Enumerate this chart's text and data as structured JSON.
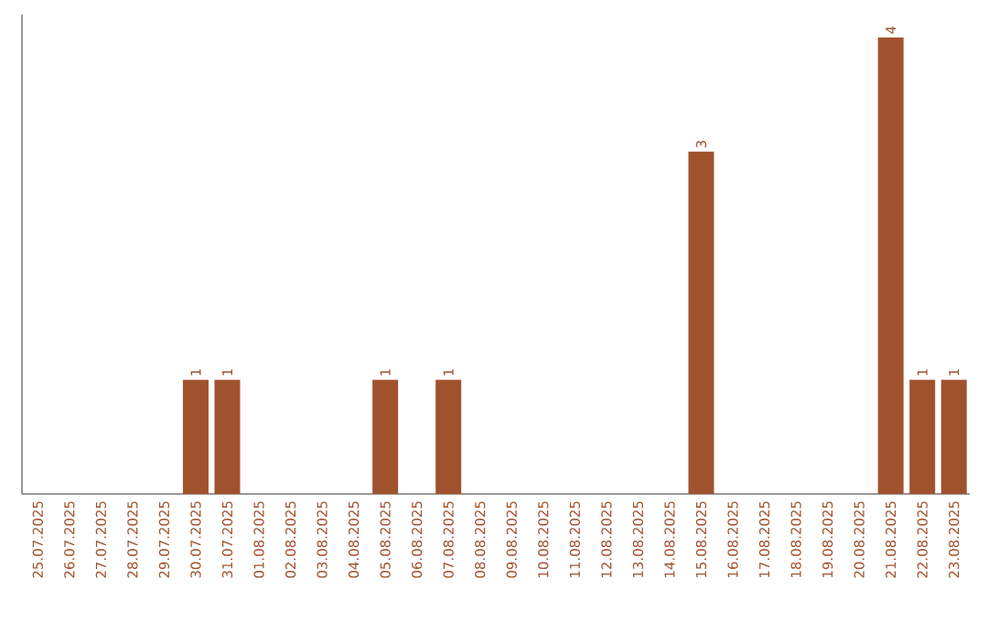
{
  "chart_data": {
    "type": "bar",
    "categories": [
      "25.07.2025",
      "26.07.2025",
      "27.07.2025",
      "28.07.2025",
      "29.07.2025",
      "30.07.2025",
      "31.07.2025",
      "01.08.2025",
      "02.08.2025",
      "03.08.2025",
      "04.08.2025",
      "05.08.2025",
      "06.08.2025",
      "07.08.2025",
      "08.08.2025",
      "09.08.2025",
      "10.08.2025",
      "11.08.2025",
      "12.08.2025",
      "13.08.2025",
      "14.08.2025",
      "15.08.2025",
      "16.08.2025",
      "17.08.2025",
      "18.08.2025",
      "19.08.2025",
      "20.08.2025",
      "21.08.2025",
      "22.08.2025",
      "23.08.2025"
    ],
    "values": [
      0,
      0,
      0,
      0,
      0,
      1,
      1,
      0,
      0,
      0,
      0,
      1,
      0,
      1,
      0,
      0,
      0,
      0,
      0,
      0,
      0,
      3,
      0,
      0,
      0,
      0,
      0,
      4,
      1,
      1
    ],
    "value_labels": [
      null,
      null,
      null,
      null,
      null,
      "1",
      "1",
      null,
      null,
      null,
      null,
      "1",
      null,
      "1",
      null,
      null,
      null,
      null,
      null,
      null,
      null,
      "3",
      null,
      null,
      null,
      null,
      null,
      "4",
      "1",
      "1"
    ],
    "color": "#a0522d"
  }
}
